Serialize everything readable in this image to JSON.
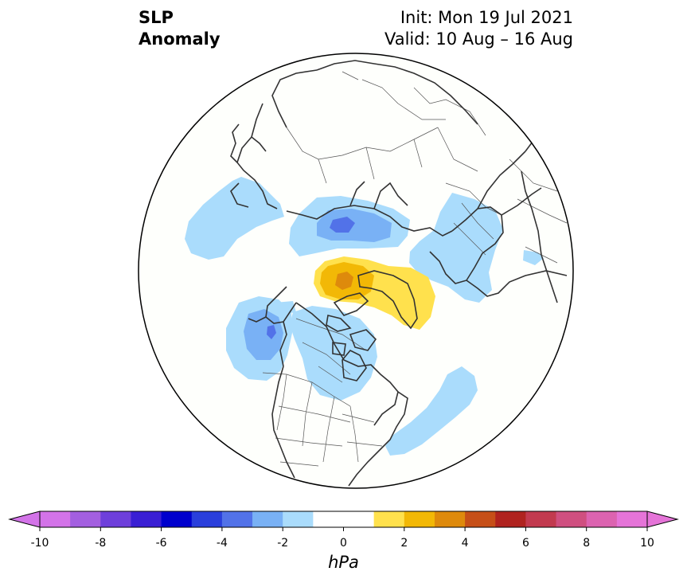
{
  "header": {
    "title_line1": "SLP",
    "title_line2": "Anomaly",
    "init": "Init: Mon 19 Jul 2021",
    "valid": "Valid: 10 Aug – 16 Aug"
  },
  "colorbar": {
    "unit": "hPa",
    "tick_labels": [
      "-10",
      "-8",
      "-6",
      "-4",
      "-2",
      "0",
      "2",
      "4",
      "6",
      "8",
      "10"
    ],
    "levels": [
      -10,
      -9,
      -8,
      -7,
      -6,
      -5,
      -4,
      -3,
      -2,
      -1,
      1,
      2,
      3,
      4,
      5,
      6,
      7,
      8,
      9,
      10
    ],
    "colors": [
      "#d373e8",
      "#a35fe0",
      "#6e3fdb",
      "#3a1fd4",
      "#0000cd",
      "#2a3fdc",
      "#5272e8",
      "#79b1f5",
      "#aadcfc",
      "#ffffff",
      "#ffe14d",
      "#f2b806",
      "#de8a0c",
      "#c64f18",
      "#b0231f",
      "#c23a4f",
      "#cf4f80",
      "#dc63b0",
      "#e574d8"
    ],
    "extend_low_color": "#d373e8",
    "extend_high_color": "#e574d8"
  },
  "map": {
    "projection": "north-polar-stereographic",
    "features": [
      "coastlines",
      "country borders",
      "US state and Canadian province borders"
    ],
    "anomalies": [
      {
        "region": "Greenland / Baffin Bay",
        "sign": "positive",
        "max_hPa": 3
      },
      {
        "region": "Arctic coast of Siberia (Kara/Laptev Sea)",
        "sign": "negative",
        "min_hPa": -3
      },
      {
        "region": "Gulf of Alaska / NE Pacific",
        "sign": "negative",
        "min_hPa": -4
      },
      {
        "region": "Central Canada",
        "sign": "negative",
        "min_hPa": -2
      },
      {
        "region": "Europe",
        "sign": "negative",
        "min_hPa": -2
      },
      {
        "region": "Kamchatka / NW Pacific",
        "sign": "negative",
        "min_hPa": -1
      },
      {
        "region": "Western Atlantic off US east coast",
        "sign": "negative",
        "min_hPa": -1
      }
    ]
  }
}
